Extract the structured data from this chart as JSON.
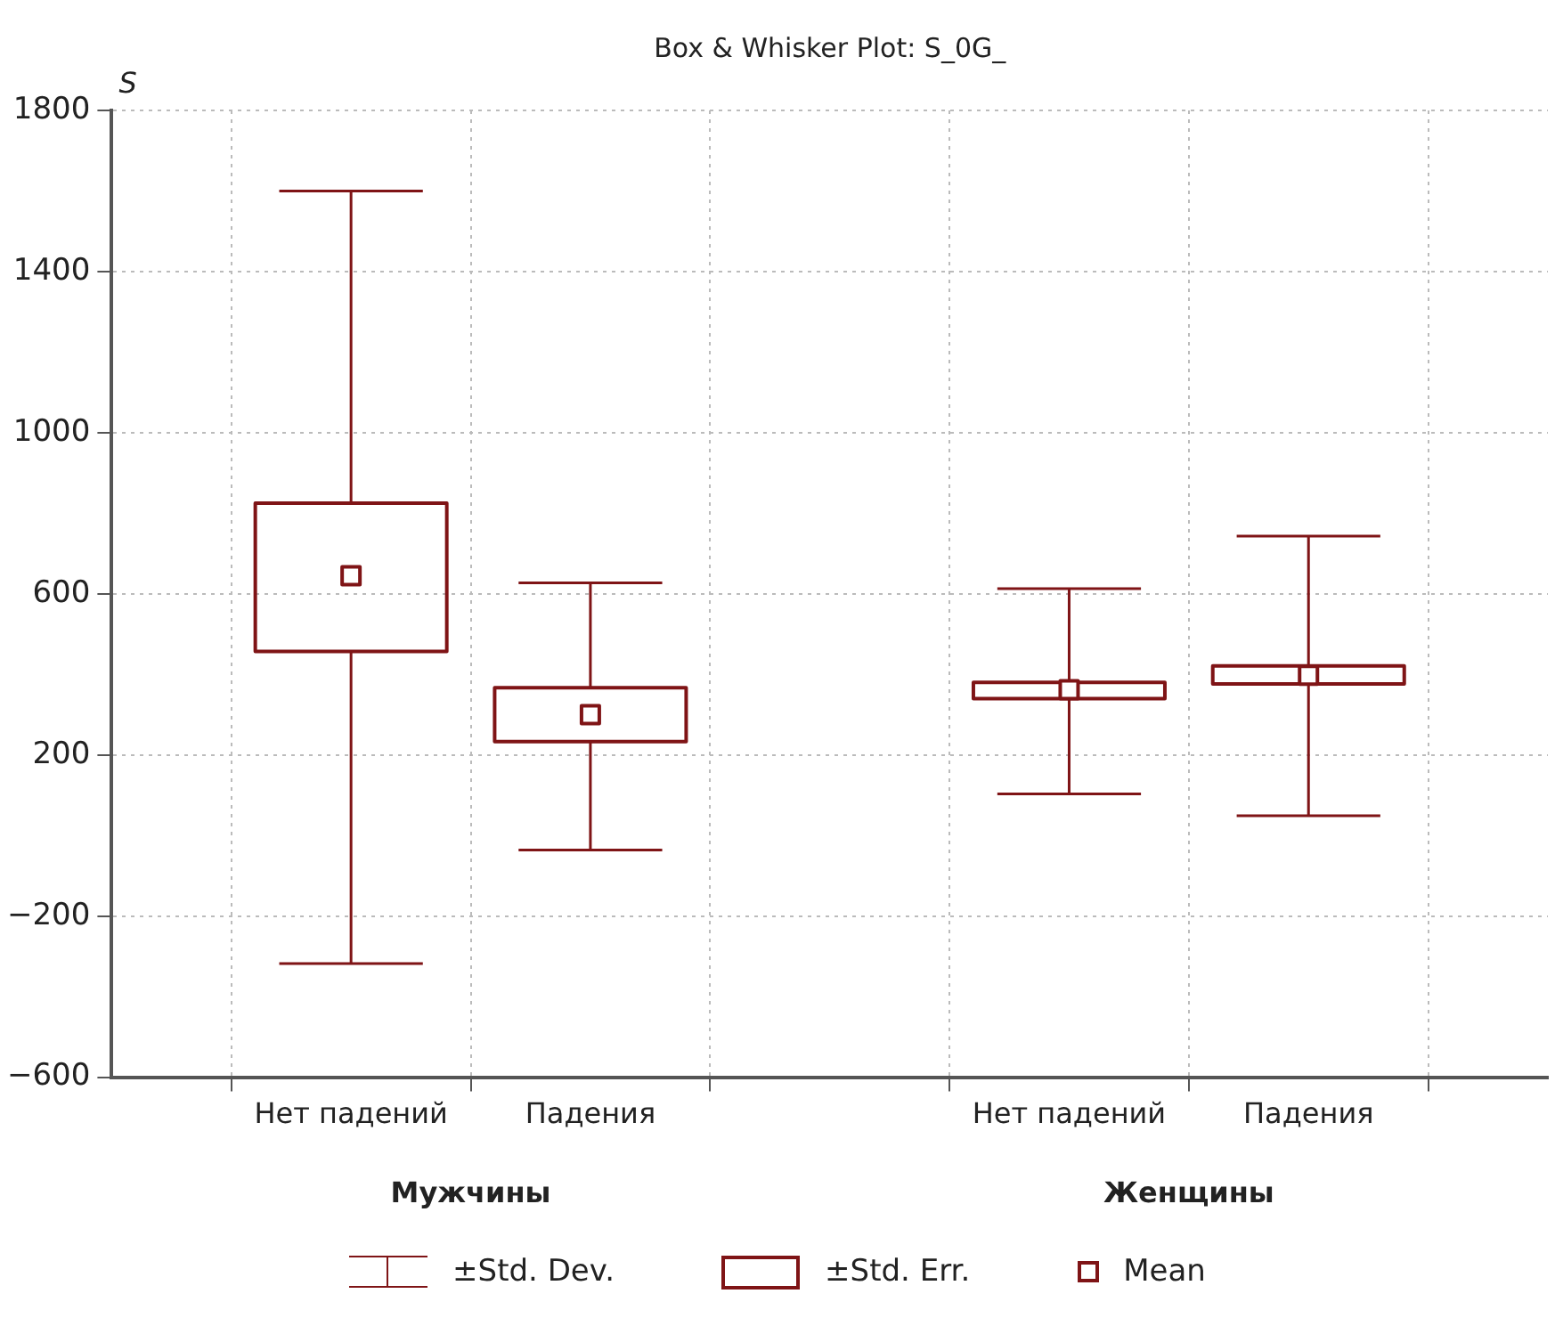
{
  "chart_data": {
    "type": "box",
    "title": "Box & Whisker Plot: S_0G_",
    "ylabel": "S",
    "categories": [
      null,
      "Нет падений",
      "Падения",
      null,
      "Нет падений",
      "Падения",
      null
    ],
    "color": "#7f1416",
    "boxes": [
      null,
      {
        "low": -318,
        "q1": 457,
        "median": 645,
        "q3": 825,
        "high": 1600
      },
      {
        "low": -36,
        "q1": 233,
        "median": 300,
        "q3": 367,
        "high": 627
      },
      null,
      {
        "low": 103,
        "q1": 340,
        "median": 362,
        "q3": 380,
        "high": 613
      },
      {
        "low": 49,
        "q1": 376,
        "median": 398,
        "q3": 421,
        "high": 743
      },
      null
    ],
    "ylim": [
      -600,
      1800
    ],
    "yticks": [
      {
        "value": -600,
        "label": "−600"
      },
      {
        "value": -200,
        "label": "−200"
      },
      200,
      600,
      1000,
      1400,
      1800
    ],
    "grid": true,
    "marker": "square",
    "annotations": [
      "Мужчины",
      "Женщины",
      "±Std. Dev.",
      "±Std. Err.",
      "Mean"
    ]
  }
}
